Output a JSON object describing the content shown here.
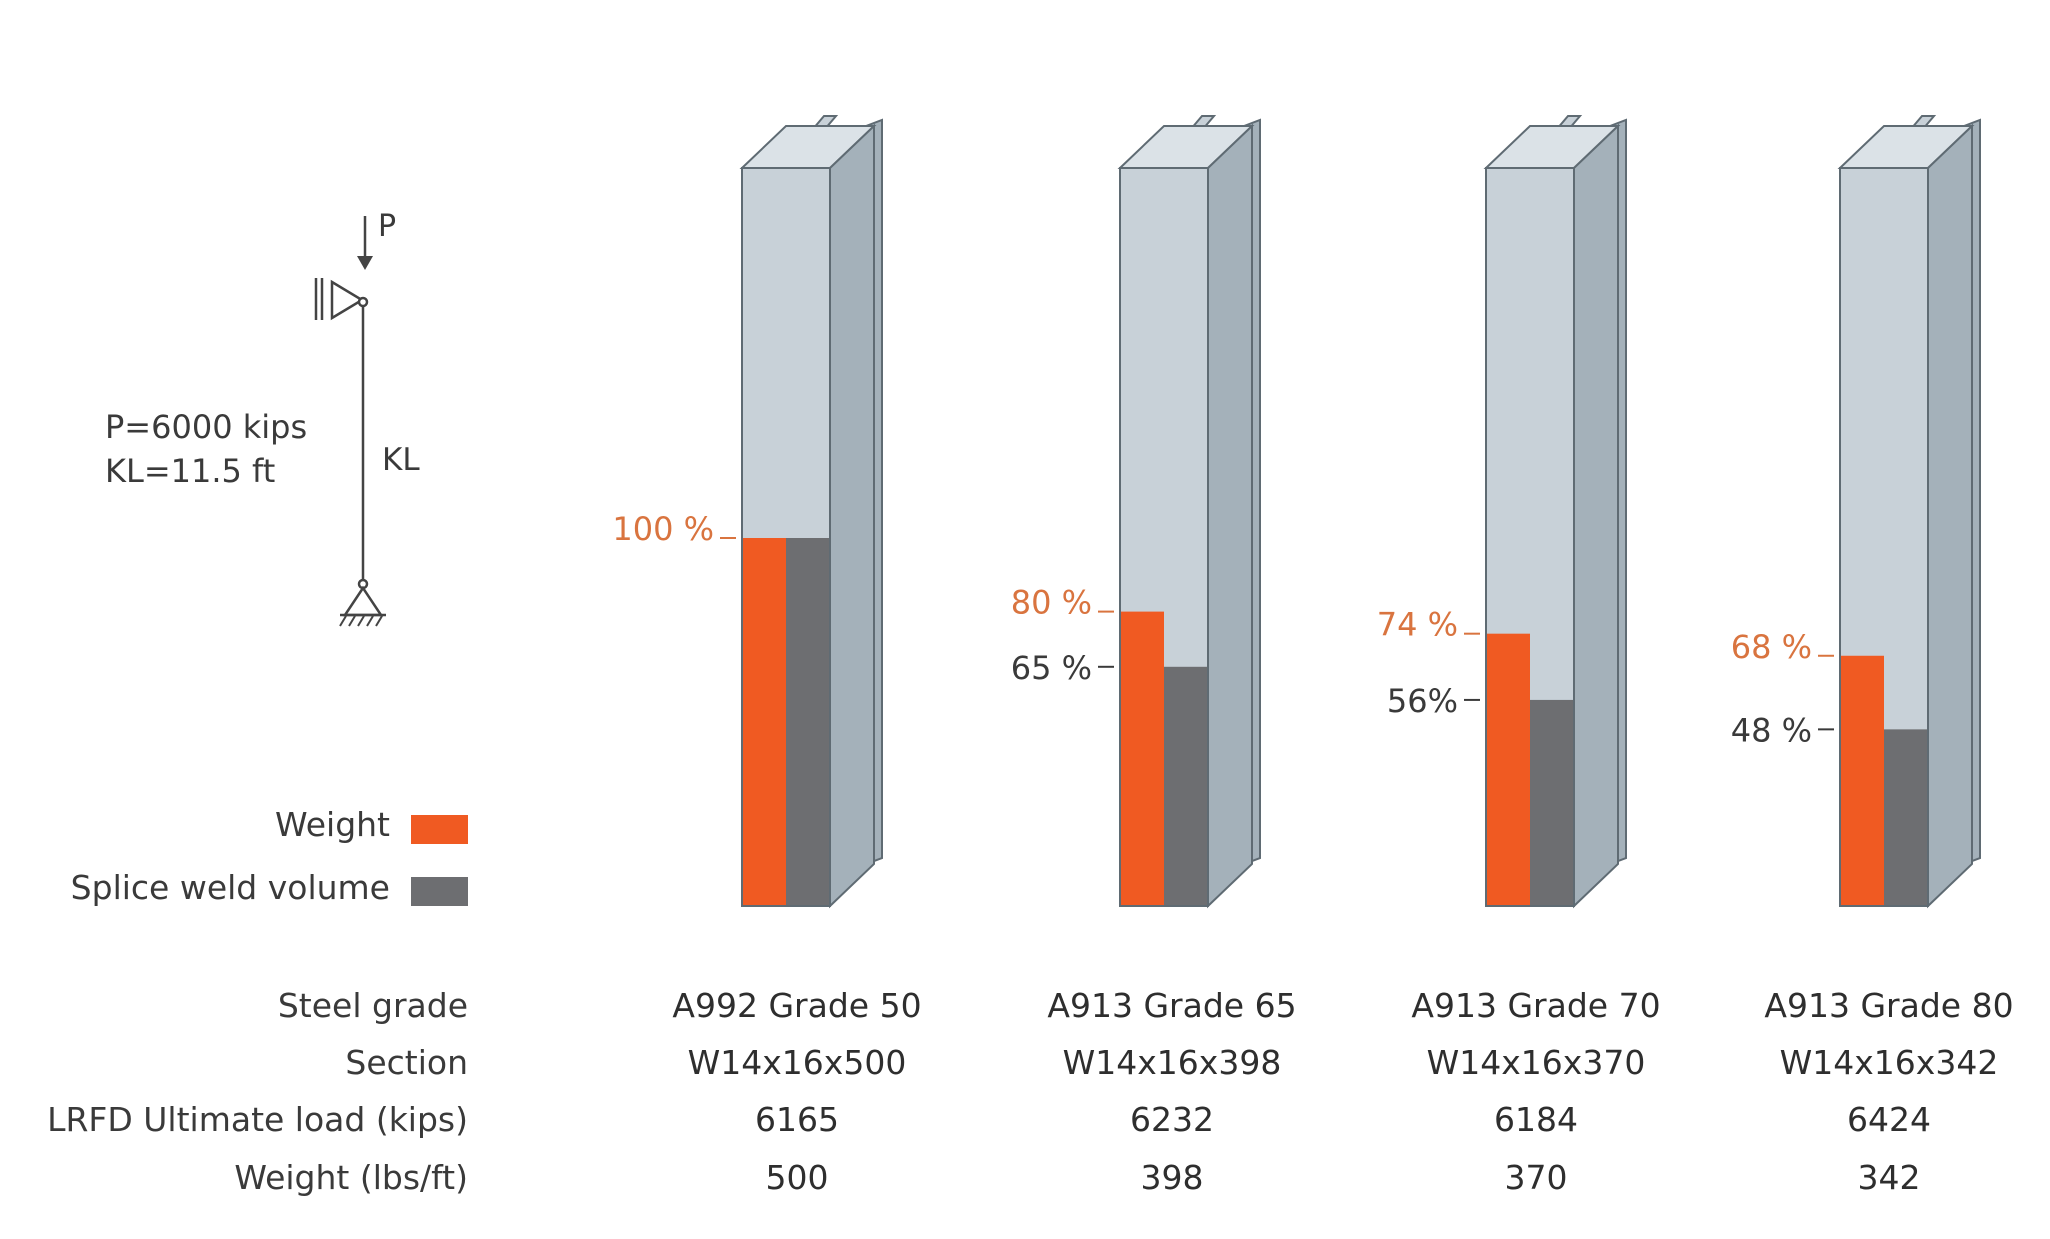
{
  "chart_data": {
    "type": "bar",
    "title": "",
    "xlabel": "",
    "ylabel": "",
    "ylim": [
      0,
      100
    ],
    "categories": [
      "A992 Grade 50",
      "A913 Grade 65",
      "A913 Grade 70",
      "A913 Grade 80"
    ],
    "series": [
      {
        "name": "Weight",
        "color": "#f05a22",
        "values": [
          100,
          80,
          74,
          68
        ],
        "labels": [
          "100 %",
          "80 %",
          "74 %",
          "68 %"
        ]
      },
      {
        "name": "Splice weld volume",
        "color": "#6d6e71",
        "values": [
          100,
          65,
          56,
          48
        ],
        "labels": [
          "",
          "65 %",
          "56%",
          "48 %"
        ]
      }
    ],
    "legend": "left"
  },
  "diagram": {
    "load_label": "P",
    "length_label": "KL",
    "load_text": "P=6000 kips",
    "length_text": "KL=11.5 ft"
  },
  "table": {
    "row_labels": [
      "Steel grade",
      "Section",
      "LRFD Ultimate load (kips)",
      "Weight (lbs/ft)"
    ],
    "columns": [
      [
        "A992 Grade 50",
        "W14x16x500",
        "6165",
        "500"
      ],
      [
        "A913 Grade 65",
        "W14x16x398",
        "6232",
        "398"
      ],
      [
        "A913 Grade 70",
        "W14x16x370",
        "6184",
        "370"
      ],
      [
        "A913 Grade 80",
        "W14x16x342",
        "6424",
        "342"
      ]
    ]
  },
  "colors": {
    "weight": "#f05a22",
    "weld": "#6d6e71",
    "steel_front": "#c8d1d8",
    "steel_side": "#a4b1ba",
    "steel_edge": "#5f6b73",
    "label_orange": "#d9743f",
    "text": "#3a3a3a"
  }
}
